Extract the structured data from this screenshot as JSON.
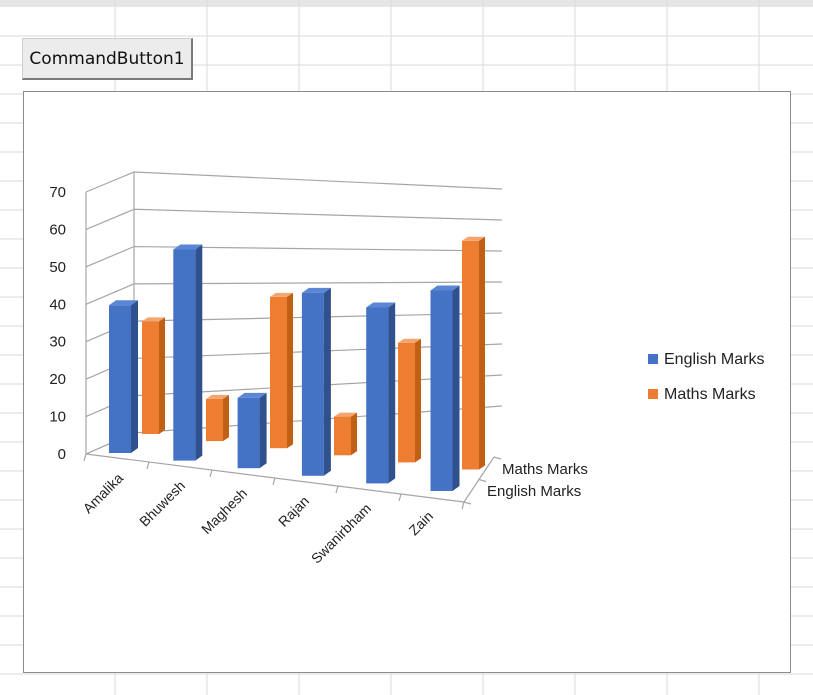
{
  "command_button": {
    "label": "CommandButton1"
  },
  "chart_data": {
    "type": "bar",
    "title": "",
    "xlabel": "",
    "ylabel": "",
    "categories": [
      "Amalika",
      "Bhuwesh",
      "Maghesh",
      "Rajan",
      "Swanirbham",
      "Zain"
    ],
    "series": [
      {
        "name": "English Marks",
        "values": [
          42,
          60,
          20,
          52,
          50,
          57
        ]
      },
      {
        "name": "Maths Marks",
        "values": [
          32,
          12,
          43,
          11,
          34,
          65
        ]
      }
    ],
    "ylim": [
      0,
      70
    ],
    "yticks": [
      "0",
      "10",
      "20",
      "30",
      "40",
      "50",
      "60",
      "70"
    ],
    "depth_labels": [
      "Maths Marks",
      "English Marks"
    ],
    "grid": true,
    "legend_position": "right",
    "colors": {
      "English Marks": "#4472C4",
      "Maths Marks": "#ED7D31"
    }
  }
}
